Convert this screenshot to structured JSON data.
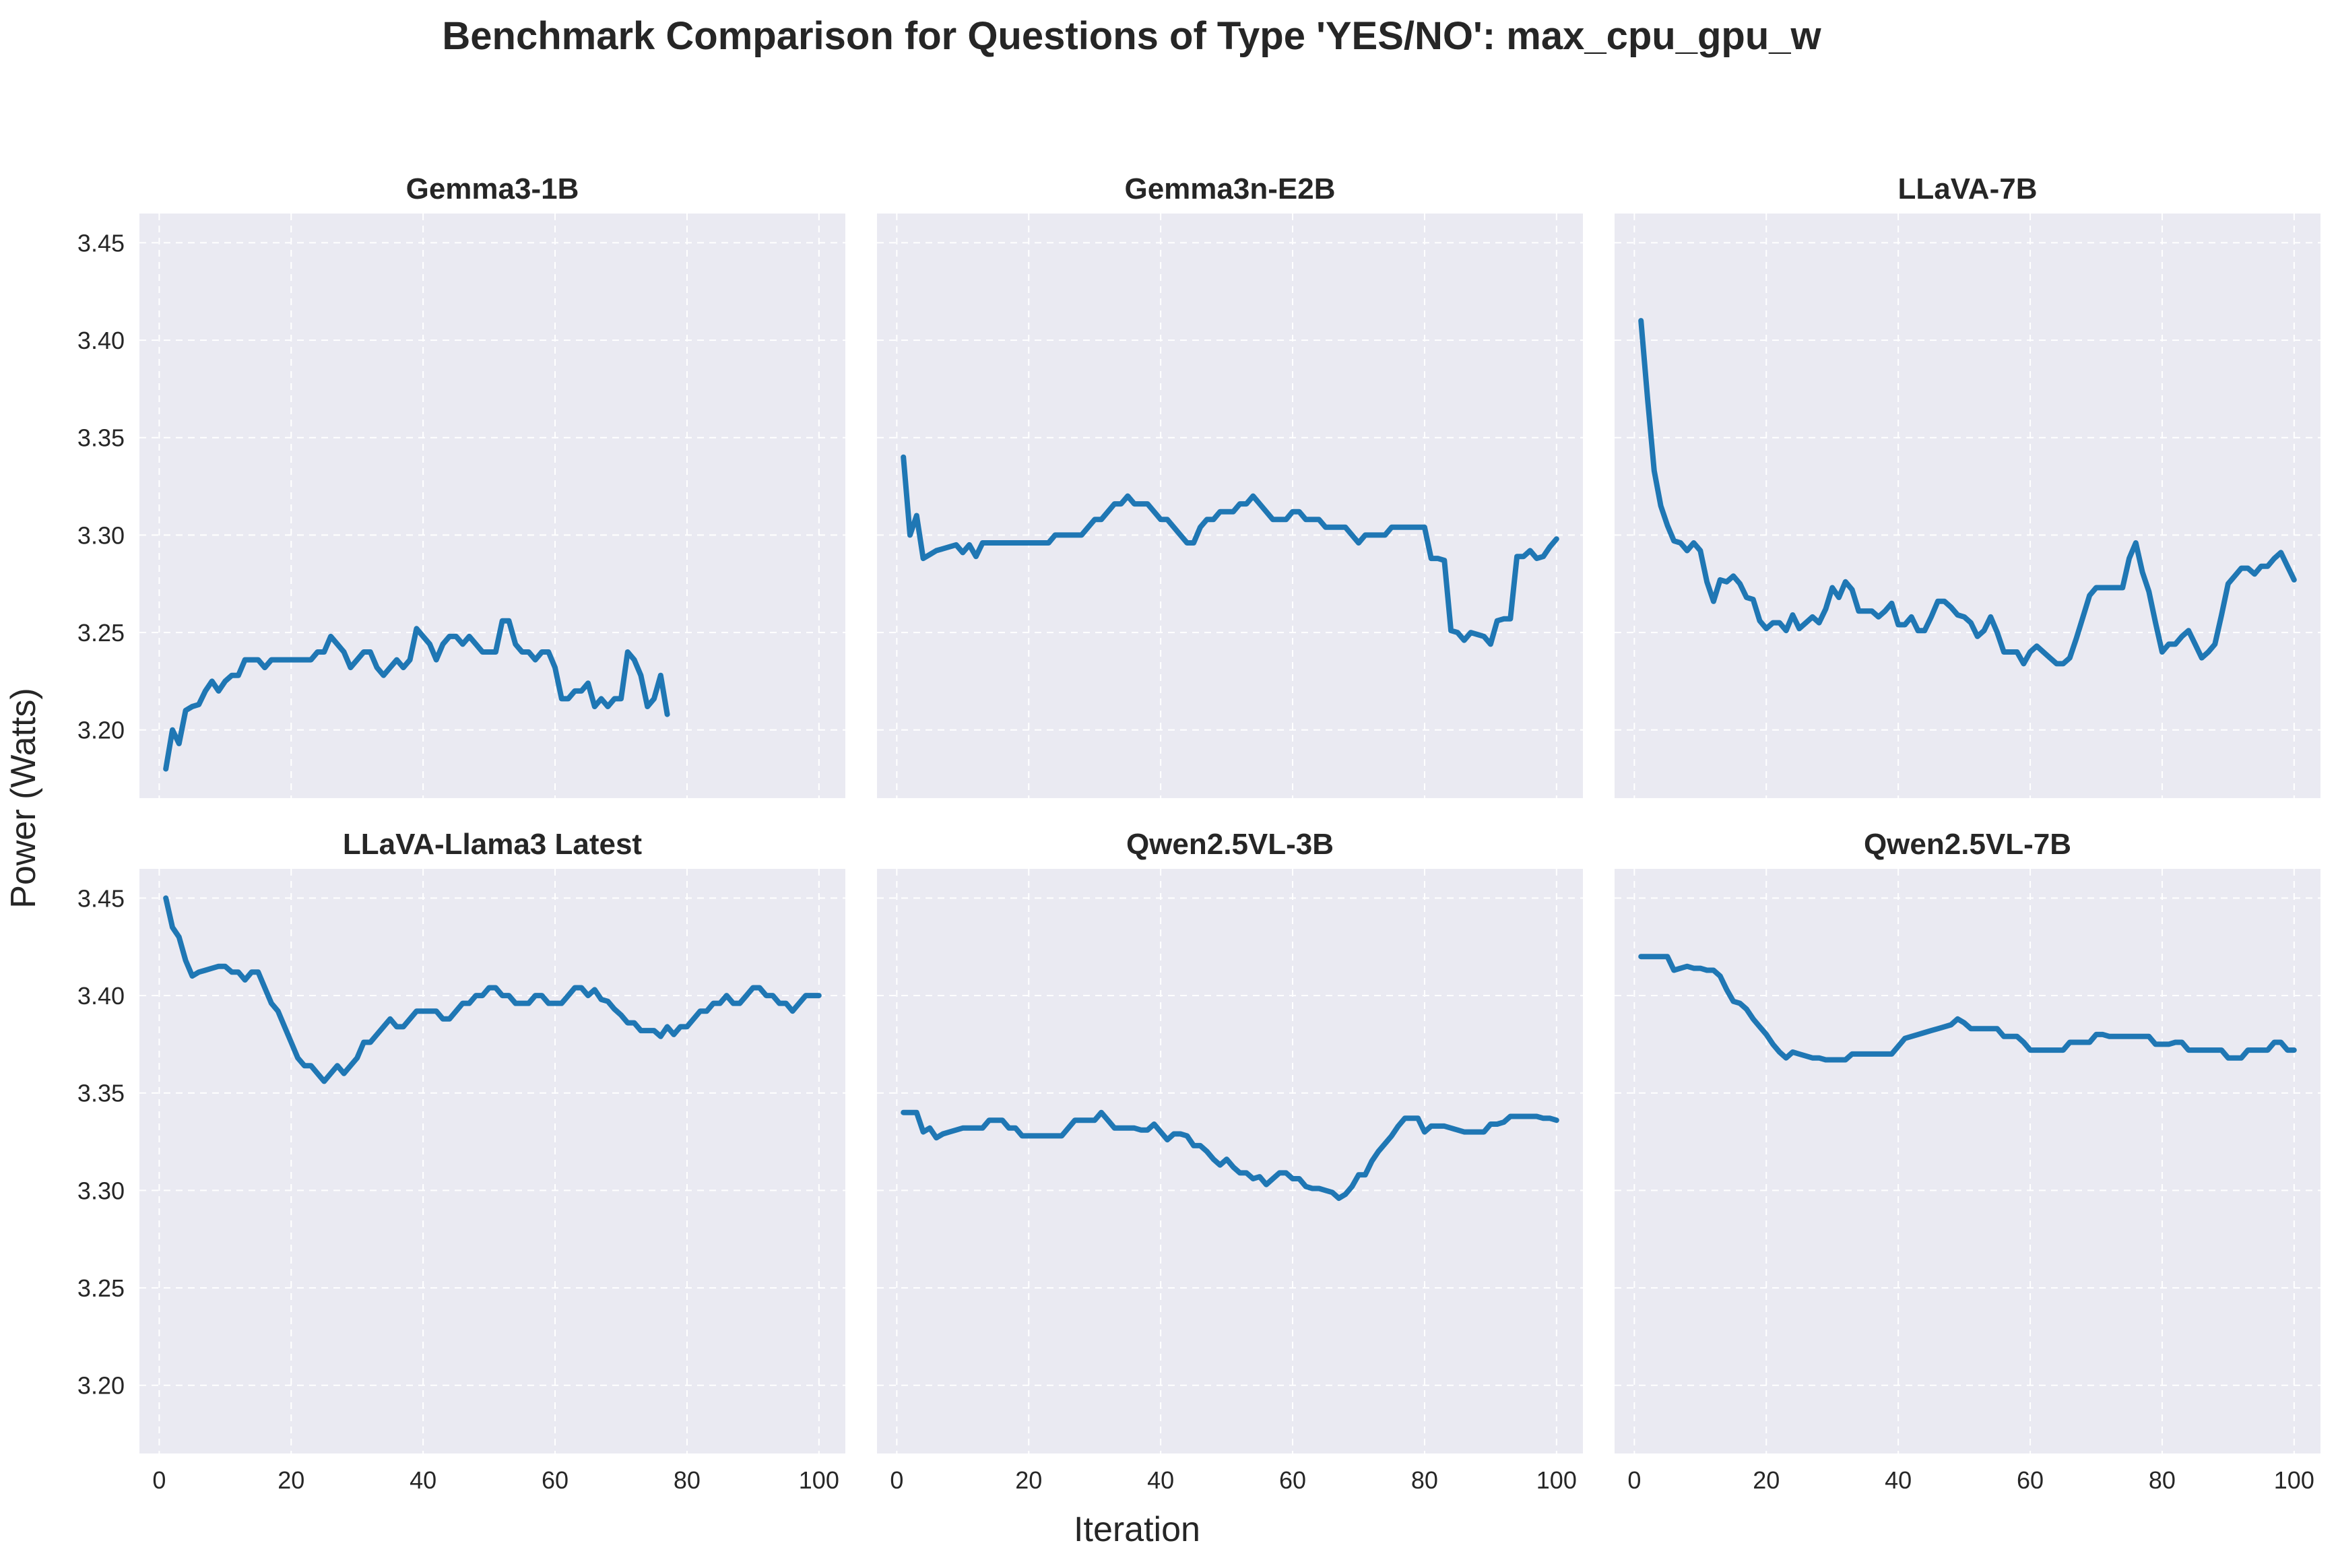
{
  "chart_title": "Benchmark Comparison for Questions of Type 'YES/NO': max_cpu_gpu_w",
  "xlabel": "Iteration",
  "ylabel": "Power (Watts)",
  "colors": {
    "line": "#1f77b4",
    "panel_bg": "#eaeaf2",
    "grid": "#ffffff"
  },
  "chart_data": [
    {
      "type": "line",
      "title": "Gemma3-1B",
      "xlim": [
        -3,
        104
      ],
      "ylim": [
        3.165,
        3.465
      ],
      "xticks": [
        0,
        20,
        40,
        60,
        80,
        100
      ],
      "yticks": [
        3.2,
        3.25,
        3.3,
        3.35,
        3.4,
        3.45
      ],
      "grid": true,
      "x": [
        1,
        2,
        3,
        4,
        5,
        6,
        7,
        8,
        9,
        10,
        11,
        12,
        13,
        14,
        15,
        16,
        17,
        18,
        19,
        20,
        21,
        22,
        23,
        24,
        25,
        26,
        27,
        28,
        29,
        30,
        31,
        32,
        33,
        34,
        35,
        36,
        37,
        38,
        39,
        40,
        41,
        42,
        43,
        44,
        45,
        46,
        47,
        48,
        49,
        50,
        51,
        52,
        53,
        54,
        55,
        56,
        57,
        58,
        59,
        60,
        61,
        62,
        63,
        64,
        65,
        66,
        67,
        68,
        69,
        70,
        71,
        72,
        73,
        74,
        75,
        76,
        77
      ],
      "y": [
        3.18,
        3.2,
        3.193,
        3.21,
        3.212,
        3.213,
        3.22,
        3.225,
        3.22,
        3.225,
        3.228,
        3.228,
        3.236,
        3.236,
        3.236,
        3.232,
        3.236,
        3.236,
        3.236,
        3.236,
        3.236,
        3.236,
        3.236,
        3.24,
        3.24,
        3.248,
        3.244,
        3.24,
        3.232,
        3.236,
        3.24,
        3.24,
        3.232,
        3.228,
        3.232,
        3.236,
        3.232,
        3.236,
        3.252,
        3.248,
        3.244,
        3.236,
        3.244,
        3.248,
        3.248,
        3.244,
        3.248,
        3.244,
        3.24,
        3.24,
        3.24,
        3.256,
        3.256,
        3.244,
        3.24,
        3.24,
        3.236,
        3.24,
        3.24,
        3.232,
        3.216,
        3.216,
        3.22,
        3.22,
        3.224,
        3.212,
        3.216,
        3.212,
        3.216,
        3.216,
        3.24,
        3.236,
        3.228,
        3.212,
        3.216,
        3.228,
        3.208
      ]
    },
    {
      "type": "line",
      "title": "Gemma3n-E2B",
      "xlim": [
        -3,
        104
      ],
      "ylim": [
        3.165,
        3.465
      ],
      "xticks": [
        0,
        20,
        40,
        60,
        80,
        100
      ],
      "yticks": [
        3.2,
        3.25,
        3.3,
        3.35,
        3.4,
        3.45
      ],
      "grid": true,
      "x": [
        1,
        2,
        3,
        4,
        5,
        6,
        7,
        8,
        9,
        10,
        11,
        12,
        13,
        14,
        15,
        16,
        17,
        18,
        19,
        20,
        21,
        22,
        23,
        24,
        25,
        26,
        27,
        28,
        29,
        30,
        31,
        32,
        33,
        34,
        35,
        36,
        37,
        38,
        39,
        40,
        41,
        42,
        43,
        44,
        45,
        46,
        47,
        48,
        49,
        50,
        51,
        52,
        53,
        54,
        55,
        56,
        57,
        58,
        59,
        60,
        61,
        62,
        63,
        64,
        65,
        66,
        67,
        68,
        69,
        70,
        71,
        72,
        73,
        74,
        75,
        76,
        77,
        78,
        79,
        80,
        81,
        82,
        83,
        84,
        85,
        86,
        87,
        88,
        89,
        90,
        91,
        92,
        93,
        94,
        95,
        96,
        97,
        98,
        99,
        100
      ],
      "y": [
        3.34,
        3.3,
        3.31,
        3.288,
        3.29,
        3.292,
        3.293,
        3.294,
        3.295,
        3.291,
        3.295,
        3.289,
        3.296,
        3.296,
        3.296,
        3.296,
        3.296,
        3.296,
        3.296,
        3.296,
        3.296,
        3.296,
        3.296,
        3.3,
        3.3,
        3.3,
        3.3,
        3.3,
        3.304,
        3.308,
        3.308,
        3.312,
        3.316,
        3.316,
        3.32,
        3.316,
        3.316,
        3.316,
        3.312,
        3.308,
        3.308,
        3.304,
        3.3,
        3.296,
        3.296,
        3.304,
        3.308,
        3.308,
        3.312,
        3.312,
        3.312,
        3.316,
        3.316,
        3.32,
        3.316,
        3.312,
        3.308,
        3.308,
        3.308,
        3.312,
        3.312,
        3.308,
        3.308,
        3.308,
        3.304,
        3.304,
        3.304,
        3.304,
        3.3,
        3.296,
        3.3,
        3.3,
        3.3,
        3.3,
        3.304,
        3.304,
        3.304,
        3.304,
        3.304,
        3.304,
        3.288,
        3.288,
        3.287,
        3.251,
        3.25,
        3.246,
        3.25,
        3.249,
        3.248,
        3.244,
        3.256,
        3.257,
        3.257,
        3.289,
        3.289,
        3.292,
        3.288,
        3.289,
        3.294,
        3.298
      ]
    },
    {
      "type": "line",
      "title": "LLaVA-7B",
      "xlim": [
        -3,
        104
      ],
      "ylim": [
        3.165,
        3.465
      ],
      "xticks": [
        0,
        20,
        40,
        60,
        80,
        100
      ],
      "yticks": [
        3.2,
        3.25,
        3.3,
        3.35,
        3.4,
        3.45
      ],
      "grid": true,
      "x": [
        1,
        2,
        3,
        4,
        5,
        6,
        7,
        8,
        9,
        10,
        11,
        12,
        13,
        14,
        15,
        16,
        17,
        18,
        19,
        20,
        21,
        22,
        23,
        24,
        25,
        26,
        27,
        28,
        29,
        30,
        31,
        32,
        33,
        34,
        35,
        36,
        37,
        38,
        39,
        40,
        41,
        42,
        43,
        44,
        45,
        46,
        47,
        48,
        49,
        50,
        51,
        52,
        53,
        54,
        55,
        56,
        57,
        58,
        59,
        60,
        61,
        62,
        63,
        64,
        65,
        66,
        67,
        68,
        69,
        70,
        71,
        72,
        73,
        74,
        75,
        76,
        77,
        78,
        79,
        80,
        81,
        82,
        83,
        84,
        85,
        86,
        87,
        88,
        89,
        90,
        91,
        92,
        93,
        94,
        95,
        96,
        97,
        98,
        99,
        100
      ],
      "y": [
        3.41,
        3.37,
        3.333,
        3.315,
        3.305,
        3.297,
        3.296,
        3.292,
        3.296,
        3.292,
        3.276,
        3.266,
        3.277,
        3.276,
        3.279,
        3.275,
        3.268,
        3.267,
        3.256,
        3.252,
        3.255,
        3.255,
        3.251,
        3.259,
        3.252,
        3.255,
        3.258,
        3.255,
        3.262,
        3.273,
        3.268,
        3.276,
        3.272,
        3.261,
        3.261,
        3.261,
        3.258,
        3.261,
        3.265,
        3.254,
        3.254,
        3.258,
        3.251,
        3.251,
        3.258,
        3.266,
        3.266,
        3.263,
        3.259,
        3.258,
        3.255,
        3.248,
        3.251,
        3.258,
        3.25,
        3.24,
        3.24,
        3.24,
        3.234,
        3.24,
        3.243,
        3.24,
        3.237,
        3.234,
        3.234,
        3.237,
        3.247,
        3.258,
        3.269,
        3.273,
        3.273,
        3.273,
        3.273,
        3.273,
        3.288,
        3.296,
        3.281,
        3.271,
        3.255,
        3.24,
        3.244,
        3.244,
        3.248,
        3.251,
        3.244,
        3.237,
        3.24,
        3.244,
        3.259,
        3.275,
        3.279,
        3.283,
        3.283,
        3.28,
        3.284,
        3.284,
        3.288,
        3.291,
        3.284,
        3.277
      ]
    },
    {
      "type": "line",
      "title": "LLaVA-Llama3 Latest",
      "xlim": [
        -3,
        104
      ],
      "ylim": [
        3.165,
        3.465
      ],
      "xticks": [
        0,
        20,
        40,
        60,
        80,
        100
      ],
      "yticks": [
        3.2,
        3.25,
        3.3,
        3.35,
        3.4,
        3.45
      ],
      "grid": true,
      "x": [
        1,
        2,
        3,
        4,
        5,
        6,
        7,
        8,
        9,
        10,
        11,
        12,
        13,
        14,
        15,
        16,
        17,
        18,
        19,
        20,
        21,
        22,
        23,
        24,
        25,
        26,
        27,
        28,
        29,
        30,
        31,
        32,
        33,
        34,
        35,
        36,
        37,
        38,
        39,
        40,
        41,
        42,
        43,
        44,
        45,
        46,
        47,
        48,
        49,
        50,
        51,
        52,
        53,
        54,
        55,
        56,
        57,
        58,
        59,
        60,
        61,
        62,
        63,
        64,
        65,
        66,
        67,
        68,
        69,
        70,
        71,
        72,
        73,
        74,
        75,
        76,
        77,
        78,
        79,
        80,
        81,
        82,
        83,
        84,
        85,
        86,
        87,
        88,
        89,
        90,
        91,
        92,
        93,
        94,
        95,
        96,
        97,
        98,
        99,
        100
      ],
      "y": [
        3.45,
        3.435,
        3.43,
        3.418,
        3.41,
        3.412,
        3.413,
        3.414,
        3.415,
        3.415,
        3.412,
        3.412,
        3.408,
        3.412,
        3.412,
        3.404,
        3.396,
        3.392,
        3.384,
        3.376,
        3.368,
        3.364,
        3.364,
        3.36,
        3.356,
        3.36,
        3.364,
        3.36,
        3.364,
        3.368,
        3.376,
        3.376,
        3.38,
        3.384,
        3.388,
        3.384,
        3.384,
        3.388,
        3.392,
        3.392,
        3.392,
        3.392,
        3.388,
        3.388,
        3.392,
        3.396,
        3.396,
        3.4,
        3.4,
        3.404,
        3.404,
        3.4,
        3.4,
        3.396,
        3.396,
        3.396,
        3.4,
        3.4,
        3.396,
        3.396,
        3.396,
        3.4,
        3.404,
        3.404,
        3.4,
        3.403,
        3.398,
        3.397,
        3.393,
        3.39,
        3.386,
        3.386,
        3.382,
        3.382,
        3.382,
        3.379,
        3.384,
        3.38,
        3.384,
        3.384,
        3.388,
        3.392,
        3.392,
        3.396,
        3.396,
        3.4,
        3.396,
        3.396,
        3.4,
        3.404,
        3.404,
        3.4,
        3.4,
        3.396,
        3.396,
        3.392,
        3.396,
        3.4,
        3.4,
        3.4
      ]
    },
    {
      "type": "line",
      "title": "Qwen2.5VL-3B",
      "xlim": [
        -3,
        104
      ],
      "ylim": [
        3.165,
        3.465
      ],
      "xticks": [
        0,
        20,
        40,
        60,
        80,
        100
      ],
      "yticks": [
        3.2,
        3.25,
        3.3,
        3.35,
        3.4,
        3.45
      ],
      "grid": true,
      "x": [
        1,
        2,
        3,
        4,
        5,
        6,
        7,
        8,
        9,
        10,
        11,
        12,
        13,
        14,
        15,
        16,
        17,
        18,
        19,
        20,
        21,
        22,
        23,
        24,
        25,
        26,
        27,
        28,
        29,
        30,
        31,
        32,
        33,
        34,
        35,
        36,
        37,
        38,
        39,
        40,
        41,
        42,
        43,
        44,
        45,
        46,
        47,
        48,
        49,
        50,
        51,
        52,
        53,
        54,
        55,
        56,
        57,
        58,
        59,
        60,
        61,
        62,
        63,
        64,
        65,
        66,
        67,
        68,
        69,
        70,
        71,
        72,
        73,
        74,
        75,
        76,
        77,
        78,
        79,
        80,
        81,
        82,
        83,
        84,
        85,
        86,
        87,
        88,
        89,
        90,
        91,
        92,
        93,
        94,
        95,
        96,
        97,
        98,
        99,
        100
      ],
      "y": [
        3.34,
        3.34,
        3.34,
        3.33,
        3.332,
        3.327,
        3.329,
        3.33,
        3.331,
        3.332,
        3.332,
        3.332,
        3.332,
        3.336,
        3.336,
        3.336,
        3.332,
        3.332,
        3.328,
        3.328,
        3.328,
        3.328,
        3.328,
        3.328,
        3.328,
        3.332,
        3.336,
        3.336,
        3.336,
        3.336,
        3.34,
        3.336,
        3.332,
        3.332,
        3.332,
        3.332,
        3.331,
        3.331,
        3.334,
        3.33,
        3.326,
        3.329,
        3.329,
        3.328,
        3.323,
        3.323,
        3.32,
        3.316,
        3.313,
        3.316,
        3.312,
        3.309,
        3.309,
        3.306,
        3.307,
        3.303,
        3.306,
        3.309,
        3.309,
        3.306,
        3.306,
        3.302,
        3.301,
        3.301,
        3.3,
        3.299,
        3.296,
        3.298,
        3.302,
        3.308,
        3.308,
        3.315,
        3.32,
        3.324,
        3.328,
        3.333,
        3.337,
        3.337,
        3.337,
        3.33,
        3.333,
        3.333,
        3.333,
        3.332,
        3.331,
        3.33,
        3.33,
        3.33,
        3.33,
        3.334,
        3.334,
        3.335,
        3.338,
        3.338,
        3.338,
        3.338,
        3.338,
        3.337,
        3.337,
        3.336
      ]
    },
    {
      "type": "line",
      "title": "Qwen2.5VL-7B",
      "xlim": [
        -3,
        104
      ],
      "ylim": [
        3.165,
        3.465
      ],
      "xticks": [
        0,
        20,
        40,
        60,
        80,
        100
      ],
      "yticks": [
        3.2,
        3.25,
        3.3,
        3.35,
        3.4,
        3.45
      ],
      "grid": true,
      "x": [
        1,
        2,
        3,
        4,
        5,
        6,
        7,
        8,
        9,
        10,
        11,
        12,
        13,
        14,
        15,
        16,
        17,
        18,
        19,
        20,
        21,
        22,
        23,
        24,
        25,
        26,
        27,
        28,
        29,
        30,
        31,
        32,
        33,
        34,
        35,
        36,
        37,
        38,
        39,
        40,
        41,
        42,
        43,
        44,
        45,
        46,
        47,
        48,
        49,
        50,
        51,
        52,
        53,
        54,
        55,
        56,
        57,
        58,
        59,
        60,
        61,
        62,
        63,
        64,
        65,
        66,
        67,
        68,
        69,
        70,
        71,
        72,
        73,
        74,
        75,
        76,
        77,
        78,
        79,
        80,
        81,
        82,
        83,
        84,
        85,
        86,
        87,
        88,
        89,
        90,
        91,
        92,
        93,
        94,
        95,
        96,
        97,
        98,
        99,
        100
      ],
      "y": [
        3.42,
        3.42,
        3.42,
        3.42,
        3.42,
        3.413,
        3.414,
        3.415,
        3.414,
        3.414,
        3.413,
        3.413,
        3.41,
        3.403,
        3.397,
        3.396,
        3.393,
        3.388,
        3.384,
        3.38,
        3.375,
        3.371,
        3.368,
        3.371,
        3.37,
        3.369,
        3.368,
        3.368,
        3.367,
        3.367,
        3.367,
        3.367,
        3.37,
        3.37,
        3.37,
        3.37,
        3.37,
        3.37,
        3.37,
        3.374,
        3.378,
        3.379,
        3.38,
        3.381,
        3.382,
        3.383,
        3.384,
        3.385,
        3.388,
        3.386,
        3.383,
        3.383,
        3.383,
        3.383,
        3.383,
        3.379,
        3.379,
        3.379,
        3.376,
        3.372,
        3.372,
        3.372,
        3.372,
        3.372,
        3.372,
        3.376,
        3.376,
        3.376,
        3.376,
        3.38,
        3.38,
        3.379,
        3.379,
        3.379,
        3.379,
        3.379,
        3.379,
        3.379,
        3.375,
        3.375,
        3.375,
        3.376,
        3.376,
        3.372,
        3.372,
        3.372,
        3.372,
        3.372,
        3.372,
        3.368,
        3.368,
        3.368,
        3.372,
        3.372,
        3.372,
        3.372,
        3.376,
        3.376,
        3.372,
        3.372
      ]
    }
  ]
}
